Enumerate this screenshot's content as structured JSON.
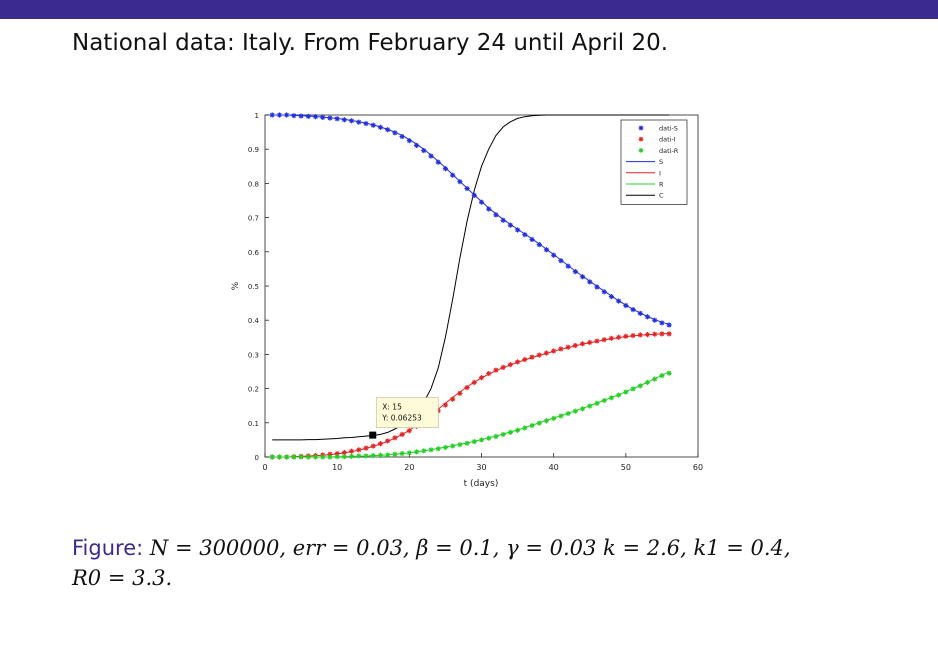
{
  "slide": {
    "title": "National data: Italy. From February 24 until April 20."
  },
  "caption": {
    "label": "Figure:",
    "text": "N = 300000, err = 0.03, β = 0.1, γ = 0.03 k = 2.6, k1 = 0.4,",
    "text_line2": "R0 = 3.3."
  },
  "colors": {
    "S": "#1f2ee8",
    "I": "#e82020",
    "R": "#22d022",
    "C": "#000000",
    "accent": "#3b2a8f"
  },
  "chart_data": {
    "type": "line",
    "xlabel": "t (days)",
    "ylabel": "%",
    "xlim": [
      0,
      60
    ],
    "ylim": [
      0,
      1
    ],
    "xticks": [
      0,
      10,
      20,
      30,
      40,
      50,
      60
    ],
    "yticks": [
      0,
      0.1,
      0.2,
      0.3,
      0.4,
      0.5,
      0.6,
      0.7,
      0.8,
      0.9,
      1
    ],
    "grid": false,
    "legend_position": "top-right",
    "legend": [
      "dati-S",
      "dati-I",
      "dati-R",
      "S",
      "I",
      "R",
      "C"
    ],
    "datatip": {
      "x_text": "X: 15",
      "y_text": "Y: 0.06253",
      "x": 15,
      "y": 0.06253
    },
    "x": [
      1,
      2,
      3,
      4,
      5,
      6,
      7,
      8,
      9,
      10,
      11,
      12,
      13,
      14,
      15,
      16,
      17,
      18,
      19,
      20,
      21,
      22,
      23,
      24,
      25,
      26,
      27,
      28,
      29,
      30,
      31,
      32,
      33,
      34,
      35,
      36,
      37,
      38,
      39,
      40,
      41,
      42,
      43,
      44,
      45,
      46,
      47,
      48,
      49,
      50,
      51,
      52,
      53,
      54,
      55,
      56
    ],
    "series": [
      {
        "name": "dati-S",
        "style": "markers",
        "color": "#1f2ee8",
        "values": [
          1,
          1,
          1,
          0.998,
          0.997,
          0.996,
          0.995,
          0.993,
          0.991,
          0.989,
          0.986,
          0.983,
          0.979,
          0.975,
          0.97,
          0.964,
          0.957,
          0.948,
          0.937,
          0.925,
          0.911,
          0.896,
          0.88,
          0.862,
          0.843,
          0.824,
          0.805,
          0.785,
          0.765,
          0.745,
          0.725,
          0.708,
          0.692,
          0.678,
          0.664,
          0.65,
          0.636,
          0.621,
          0.606,
          0.59,
          0.574,
          0.558,
          0.542,
          0.527,
          0.512,
          0.497,
          0.483,
          0.469,
          0.456,
          0.443,
          0.431,
          0.42,
          0.41,
          0.4,
          0.392,
          0.386
        ]
      },
      {
        "name": "dati-I",
        "style": "markers",
        "color": "#e82020",
        "values": [
          0,
          0,
          0,
          0.001,
          0.002,
          0.003,
          0.004,
          0.006,
          0.008,
          0.01,
          0.013,
          0.017,
          0.021,
          0.026,
          0.032,
          0.039,
          0.047,
          0.056,
          0.066,
          0.077,
          0.09,
          0.104,
          0.119,
          0.135,
          0.152,
          0.169,
          0.186,
          0.203,
          0.218,
          0.232,
          0.244,
          0.254,
          0.262,
          0.27,
          0.278,
          0.285,
          0.292,
          0.298,
          0.304,
          0.31,
          0.316,
          0.321,
          0.326,
          0.331,
          0.335,
          0.339,
          0.343,
          0.347,
          0.35,
          0.353,
          0.355,
          0.357,
          0.358,
          0.359,
          0.36,
          0.36
        ]
      },
      {
        "name": "dati-R",
        "style": "markers",
        "color": "#22d022",
        "values": [
          0,
          0,
          0,
          0,
          0,
          0,
          0,
          0,
          0,
          0.001,
          0.001,
          0.002,
          0.003,
          0.003,
          0.004,
          0.005,
          0.006,
          0.008,
          0.01,
          0.012,
          0.015,
          0.018,
          0.021,
          0.024,
          0.028,
          0.032,
          0.036,
          0.04,
          0.045,
          0.05,
          0.055,
          0.06,
          0.066,
          0.072,
          0.078,
          0.085,
          0.092,
          0.099,
          0.106,
          0.113,
          0.12,
          0.127,
          0.134,
          0.141,
          0.149,
          0.157,
          0.165,
          0.173,
          0.181,
          0.19,
          0.199,
          0.208,
          0.218,
          0.228,
          0.238,
          0.245
        ]
      },
      {
        "name": "S",
        "style": "line",
        "color": "#1f2ee8",
        "values": [
          1,
          1,
          1,
          0.999,
          0.998,
          0.997,
          0.996,
          0.994,
          0.992,
          0.99,
          0.987,
          0.984,
          0.98,
          0.976,
          0.971,
          0.965,
          0.958,
          0.95,
          0.94,
          0.928,
          0.915,
          0.9,
          0.883,
          0.865,
          0.846,
          0.826,
          0.806,
          0.786,
          0.766,
          0.747,
          0.728,
          0.711,
          0.695,
          0.68,
          0.666,
          0.652,
          0.638,
          0.623,
          0.608,
          0.592,
          0.576,
          0.56,
          0.544,
          0.529,
          0.514,
          0.499,
          0.485,
          0.471,
          0.457,
          0.444,
          0.432,
          0.421,
          0.411,
          0.402,
          0.394,
          0.388
        ]
      },
      {
        "name": "I",
        "style": "line",
        "color": "#e82020",
        "values": [
          0,
          0,
          0,
          0.001,
          0.002,
          0.003,
          0.004,
          0.005,
          0.007,
          0.009,
          0.012,
          0.016,
          0.02,
          0.025,
          0.031,
          0.038,
          0.046,
          0.055,
          0.066,
          0.078,
          0.092,
          0.107,
          0.123,
          0.14,
          0.157,
          0.174,
          0.19,
          0.205,
          0.219,
          0.231,
          0.242,
          0.252,
          0.261,
          0.269,
          0.277,
          0.284,
          0.291,
          0.297,
          0.303,
          0.309,
          0.315,
          0.32,
          0.325,
          0.33,
          0.334,
          0.338,
          0.342,
          0.346,
          0.349,
          0.352,
          0.354,
          0.356,
          0.358,
          0.359,
          0.36,
          0.361
        ]
      },
      {
        "name": "R",
        "style": "line",
        "color": "#22d022",
        "values": [
          0,
          0,
          0,
          0,
          0,
          0,
          0,
          0,
          0,
          0.001,
          0.001,
          0.002,
          0.002,
          0.003,
          0.004,
          0.005,
          0.006,
          0.008,
          0.01,
          0.012,
          0.015,
          0.018,
          0.021,
          0.025,
          0.029,
          0.033,
          0.037,
          0.041,
          0.046,
          0.051,
          0.056,
          0.061,
          0.067,
          0.073,
          0.079,
          0.086,
          0.093,
          0.1,
          0.107,
          0.114,
          0.121,
          0.128,
          0.135,
          0.142,
          0.15,
          0.158,
          0.166,
          0.174,
          0.182,
          0.191,
          0.2,
          0.209,
          0.219,
          0.229,
          0.239,
          0.249
        ]
      },
      {
        "name": "C",
        "style": "line",
        "color": "#000000",
        "values": [
          0.05,
          0.05,
          0.05,
          0.05,
          0.05,
          0.051,
          0.051,
          0.052,
          0.053,
          0.054,
          0.056,
          0.057,
          0.059,
          0.061,
          0.063,
          0.066,
          0.072,
          0.082,
          0.095,
          0.11,
          0.13,
          0.16,
          0.2,
          0.26,
          0.35,
          0.46,
          0.58,
          0.69,
          0.78,
          0.85,
          0.9,
          0.94,
          0.965,
          0.98,
          0.99,
          0.995,
          0.998,
          0.999,
          1,
          1,
          1,
          1,
          1,
          1,
          1,
          1,
          1,
          1,
          1,
          1,
          1,
          1,
          1,
          1,
          1,
          1
        ]
      }
    ]
  }
}
